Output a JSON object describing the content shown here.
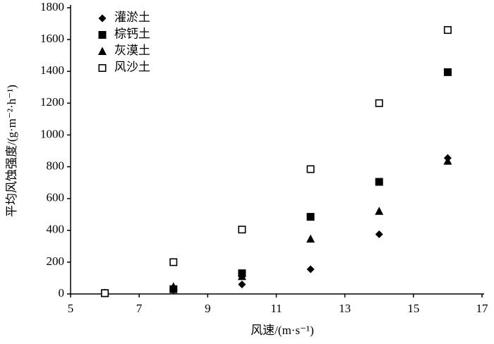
{
  "chart_data": {
    "type": "scatter",
    "xlabel": "风速/(m·s⁻¹)",
    "ylabel": "平均风蚀强度/(g·m⁻²·h⁻¹)",
    "xlim": [
      5,
      17
    ],
    "xticks": [
      5,
      7,
      9,
      11,
      13,
      15,
      17
    ],
    "ylim": [
      0,
      1800
    ],
    "yticks": [
      0,
      200,
      400,
      600,
      800,
      1000,
      1200,
      1400,
      1600,
      1800
    ],
    "legend": "upper-left",
    "series": [
      {
        "name": "灌淤土",
        "marker": "diamond",
        "color": "#000000",
        "x": [
          6,
          8,
          10,
          12,
          14,
          16
        ],
        "values": [
          5,
          25,
          60,
          155,
          375,
          855
        ]
      },
      {
        "name": "棕钙土",
        "marker": "square",
        "color": "#000000",
        "x": [
          6,
          8,
          10,
          12,
          14,
          16
        ],
        "values": [
          5,
          30,
          130,
          485,
          705,
          1395
        ]
      },
      {
        "name": "灰漠土",
        "marker": "triangle",
        "color": "#000000",
        "x": [
          6,
          8,
          10,
          12,
          14,
          16
        ],
        "values": [
          5,
          45,
          110,
          345,
          520,
          835
        ]
      },
      {
        "name": "风沙土",
        "marker": "open-square",
        "color": "#000000",
        "x": [
          6,
          8,
          10,
          12,
          14,
          16
        ],
        "values": [
          5,
          200,
          405,
          785,
          1200,
          1660
        ]
      }
    ]
  }
}
